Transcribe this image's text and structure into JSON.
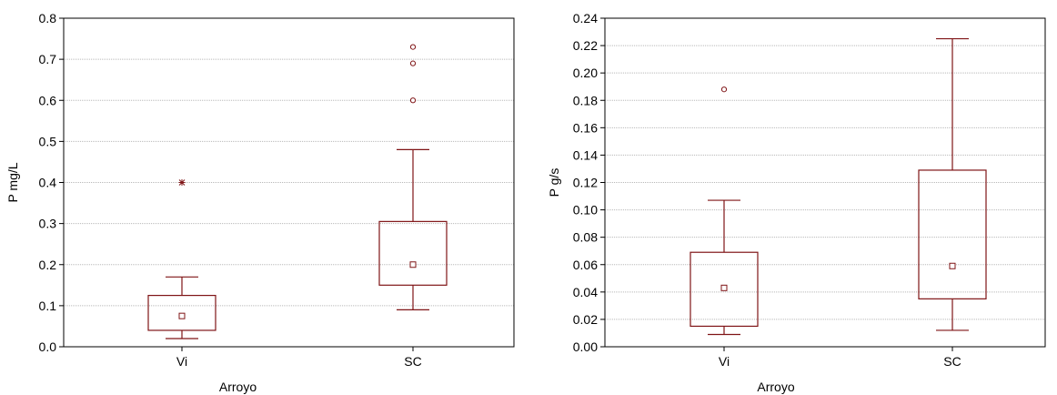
{
  "colors": {
    "box": "#7f1416",
    "grid": "#b8b8b8",
    "frame": "#000000"
  },
  "chart_data": [
    {
      "type": "box",
      "xlabel": "Arroyo",
      "ylabel": "P mg/L",
      "ylim": [
        0,
        0.8
      ],
      "yticks": [
        "0.0",
        "0.1",
        "0.2",
        "0.3",
        "0.4",
        "0.5",
        "0.6",
        "0.7",
        "0.8"
      ],
      "grid": true,
      "categories": [
        "Vi",
        "SC"
      ],
      "boxes": [
        {
          "category": "Vi",
          "median": 0.075,
          "q1": 0.04,
          "q3": 0.125,
          "whisker_low": 0.02,
          "whisker_high": 0.17,
          "outliers": [],
          "extremes": [
            0.4
          ]
        },
        {
          "category": "SC",
          "median": 0.2,
          "q1": 0.15,
          "q3": 0.305,
          "whisker_low": 0.09,
          "whisker_high": 0.48,
          "outliers": [
            0.6,
            0.69,
            0.73
          ],
          "extremes": []
        }
      ]
    },
    {
      "type": "box",
      "xlabel": "Arroyo",
      "ylabel": "P g/s",
      "ylim": [
        0,
        0.24
      ],
      "yticks": [
        "0.00",
        "0.02",
        "0.04",
        "0.06",
        "0.08",
        "0.10",
        "0.12",
        "0.14",
        "0.16",
        "0.18",
        "0.20",
        "0.22",
        "0.24"
      ],
      "grid": true,
      "categories": [
        "Vi",
        "SC"
      ],
      "boxes": [
        {
          "category": "Vi",
          "median": 0.043,
          "q1": 0.015,
          "q3": 0.069,
          "whisker_low": 0.009,
          "whisker_high": 0.107,
          "outliers": [
            0.188
          ],
          "extremes": []
        },
        {
          "category": "SC",
          "median": 0.059,
          "q1": 0.035,
          "q3": 0.129,
          "whisker_low": 0.012,
          "whisker_high": 0.225,
          "outliers": [],
          "extremes": []
        }
      ]
    }
  ]
}
